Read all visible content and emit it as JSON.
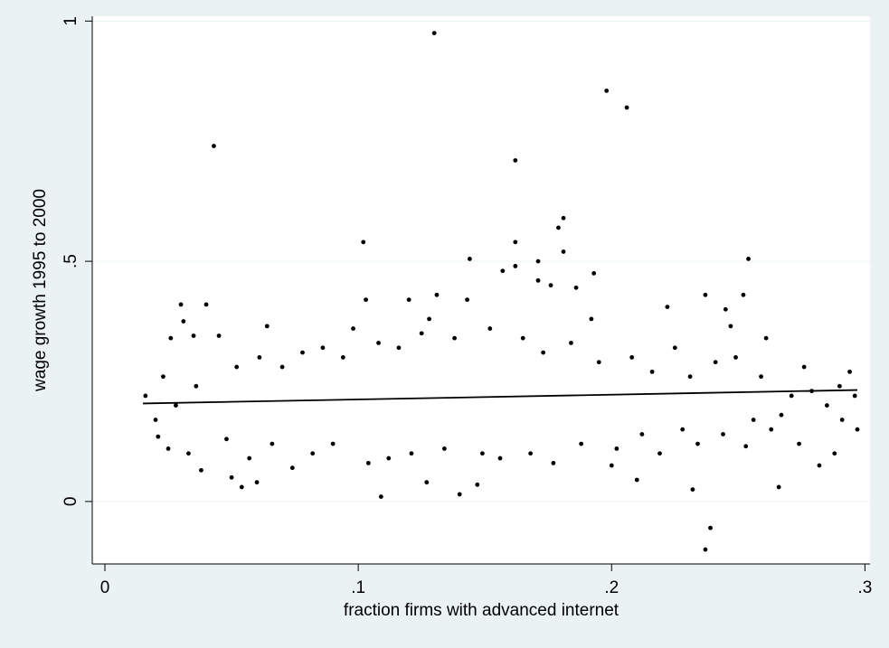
{
  "chart_data": {
    "type": "scatter",
    "title": "",
    "xlabel": "fraction firms with advanced internet",
    "ylabel": "wage growth 1995 to 2000",
    "xlim": [
      -0.005,
      0.302
    ],
    "ylim": [
      -0.13,
      1.01
    ],
    "xticks": [
      0,
      0.1,
      0.2,
      0.3
    ],
    "xtick_labels": [
      "0",
      ".1",
      ".2",
      ".3"
    ],
    "yticks": [
      0,
      0.5,
      1
    ],
    "ytick_labels": [
      "0",
      ".5",
      "1"
    ],
    "grid": "horizontal",
    "legend": "none",
    "colors": {
      "background": "#eaf2f3",
      "plot": "#ffffff",
      "points": "#000000",
      "grid": "#eaf2f3"
    },
    "series": [
      {
        "kind": "points",
        "points": [
          [
            0.043,
            0.74
          ],
          [
            0.13,
            0.975
          ],
          [
            0.198,
            0.855
          ],
          [
            0.206,
            0.82
          ],
          [
            0.162,
            0.71
          ],
          [
            0.102,
            0.54
          ],
          [
            0.181,
            0.59
          ],
          [
            0.179,
            0.57
          ],
          [
            0.162,
            0.54
          ],
          [
            0.254,
            0.505
          ],
          [
            0.144,
            0.505
          ],
          [
            0.171,
            0.5
          ],
          [
            0.181,
            0.52
          ],
          [
            0.162,
            0.49
          ],
          [
            0.157,
            0.48
          ],
          [
            0.171,
            0.46
          ],
          [
            0.193,
            0.475
          ],
          [
            0.176,
            0.45
          ],
          [
            0.186,
            0.445
          ],
          [
            0.131,
            0.43
          ],
          [
            0.252,
            0.43
          ],
          [
            0.237,
            0.43
          ],
          [
            0.103,
            0.42
          ],
          [
            0.12,
            0.42
          ],
          [
            0.143,
            0.42
          ],
          [
            0.03,
            0.41
          ],
          [
            0.04,
            0.41
          ],
          [
            0.222,
            0.405
          ],
          [
            0.245,
            0.4
          ],
          [
            0.192,
            0.38
          ],
          [
            0.064,
            0.365
          ],
          [
            0.098,
            0.36
          ],
          [
            0.128,
            0.38
          ],
          [
            0.031,
            0.375
          ],
          [
            0.261,
            0.34
          ],
          [
            0.247,
            0.365
          ],
          [
            0.035,
            0.345
          ],
          [
            0.045,
            0.345
          ],
          [
            0.016,
            0.22
          ],
          [
            0.02,
            0.17
          ],
          [
            0.026,
            0.34
          ],
          [
            0.025,
            0.11
          ],
          [
            0.038,
            0.065
          ],
          [
            0.05,
            0.05
          ],
          [
            0.054,
            0.03
          ],
          [
            0.06,
            0.04
          ],
          [
            0.109,
            0.01
          ],
          [
            0.14,
            0.015
          ],
          [
            0.127,
            0.04
          ],
          [
            0.147,
            0.035
          ],
          [
            0.232,
            0.025
          ],
          [
            0.266,
            0.03
          ],
          [
            0.2,
            0.075
          ],
          [
            0.21,
            0.045
          ],
          [
            0.253,
            0.115
          ],
          [
            0.288,
            0.1
          ],
          [
            0.282,
            0.075
          ],
          [
            0.297,
            0.15
          ],
          [
            0.294,
            0.27
          ],
          [
            0.276,
            0.28
          ],
          [
            0.263,
            0.15
          ],
          [
            0.267,
            0.18
          ],
          [
            0.29,
            0.24
          ],
          [
            0.239,
            -0.055
          ],
          [
            0.237,
            -0.1
          ],
          [
            0.021,
            0.135
          ],
          [
            0.023,
            0.26
          ],
          [
            0.028,
            0.2
          ],
          [
            0.033,
            0.1
          ],
          [
            0.036,
            0.24
          ],
          [
            0.048,
            0.13
          ],
          [
            0.052,
            0.28
          ],
          [
            0.057,
            0.09
          ],
          [
            0.061,
            0.3
          ],
          [
            0.066,
            0.12
          ],
          [
            0.07,
            0.28
          ],
          [
            0.074,
            0.07
          ],
          [
            0.078,
            0.31
          ],
          [
            0.082,
            0.1
          ],
          [
            0.086,
            0.32
          ],
          [
            0.09,
            0.12
          ],
          [
            0.094,
            0.3
          ],
          [
            0.104,
            0.08
          ],
          [
            0.108,
            0.33
          ],
          [
            0.112,
            0.09
          ],
          [
            0.116,
            0.32
          ],
          [
            0.121,
            0.1
          ],
          [
            0.125,
            0.35
          ],
          [
            0.134,
            0.11
          ],
          [
            0.138,
            0.34
          ],
          [
            0.149,
            0.1
          ],
          [
            0.152,
            0.36
          ],
          [
            0.156,
            0.09
          ],
          [
            0.165,
            0.34
          ],
          [
            0.168,
            0.1
          ],
          [
            0.173,
            0.31
          ],
          [
            0.177,
            0.08
          ],
          [
            0.184,
            0.33
          ],
          [
            0.188,
            0.12
          ],
          [
            0.195,
            0.29
          ],
          [
            0.202,
            0.11
          ],
          [
            0.208,
            0.3
          ],
          [
            0.212,
            0.14
          ],
          [
            0.216,
            0.27
          ],
          [
            0.219,
            0.1
          ],
          [
            0.225,
            0.32
          ],
          [
            0.228,
            0.15
          ],
          [
            0.231,
            0.26
          ],
          [
            0.234,
            0.12
          ],
          [
            0.241,
            0.29
          ],
          [
            0.244,
            0.14
          ],
          [
            0.249,
            0.3
          ],
          [
            0.256,
            0.17
          ],
          [
            0.259,
            0.26
          ],
          [
            0.271,
            0.22
          ],
          [
            0.274,
            0.12
          ],
          [
            0.279,
            0.23
          ],
          [
            0.285,
            0.2
          ],
          [
            0.291,
            0.17
          ],
          [
            0.296,
            0.22
          ]
        ]
      },
      {
        "kind": "fit-line",
        "x": [
          0.015,
          0.297
        ],
        "y": [
          0.204,
          0.232
        ]
      }
    ]
  }
}
